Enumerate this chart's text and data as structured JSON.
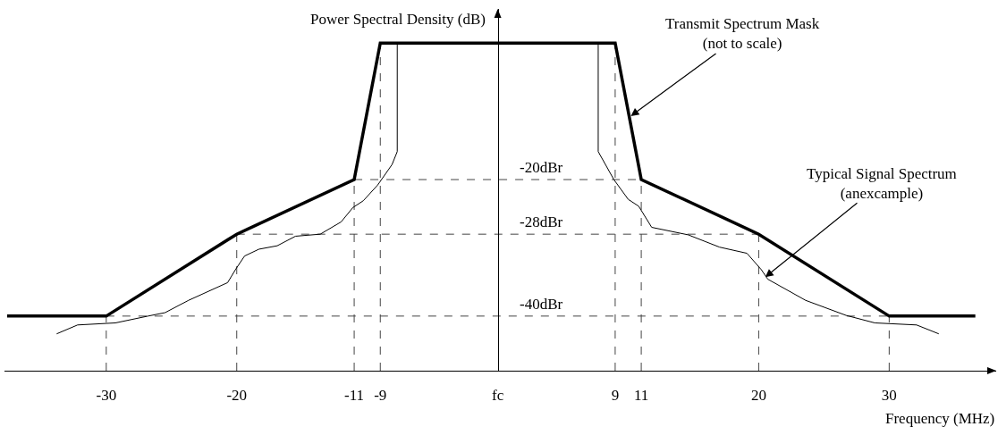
{
  "chart_data": {
    "type": "line",
    "xlabel": "Frequency (MHz)",
    "ylabel": "Power Spectral Density (dB)",
    "xlim": [
      -37.8,
      38.2
    ],
    "ylim": [
      -48,
      5
    ],
    "xticks": [
      -30,
      -20,
      -11,
      -9,
      {
        "value": 0,
        "label": "fc"
      },
      9,
      11,
      20,
      30
    ],
    "tick_labels": "x",
    "series": [
      {
        "color": "#000000",
        "x": [
          -37.6,
          -30,
          -20,
          -11,
          -9,
          9,
          11,
          20,
          30,
          36.6
        ],
        "values": [
          -40,
          -40,
          -28,
          -20,
          0,
          0,
          -20,
          -28,
          -40,
          -40
        ]
      },
      {
        "color": "#000000",
        "x": [
          -33.8,
          -32.2,
          -29.3,
          -26.8,
          -25.5,
          -23.7,
          -20.7,
          -20.1,
          -19.4,
          -18.3,
          -16.9,
          -15.5,
          -13.6,
          -12.0,
          -11.1,
          -10.3,
          -9.2,
          -8.1,
          -7.7,
          -7.7,
          7.7,
          7.7,
          8.9,
          10.0,
          10.8,
          11.8,
          14.6,
          17.0,
          19.1,
          20.2,
          20.7,
          23.6,
          26.7,
          28.9,
          32.1,
          33.8
        ],
        "values": [
          -42.6,
          -41.3,
          -41.0,
          -40.0,
          -39.5,
          -37.7,
          -35.1,
          -33.2,
          -31.2,
          -30.2,
          -29.7,
          -28.3,
          -28,
          -26.2,
          -24.1,
          -23.1,
          -20.8,
          -17.8,
          -15.9,
          0,
          0,
          -15.9,
          -20,
          -22.9,
          -23.9,
          -27.0,
          -28.1,
          -29.9,
          -30.8,
          -33.2,
          -34.6,
          -37.7,
          -39.9,
          -41.0,
          -41.3,
          -42.6
        ]
      }
    ],
    "ref_lines": [
      {
        "axis": "y",
        "value": -20,
        "label": "-20dBr",
        "color": "#444444",
        "line_style": "dashed"
      },
      {
        "axis": "y",
        "value": -28,
        "label": "-28dBr",
        "color": "#444444",
        "line_style": "dashed"
      },
      {
        "axis": "y",
        "value": -40,
        "label": "-40dBr",
        "color": "#444444",
        "line_style": "dashed"
      },
      {
        "axis": "x",
        "value": -30,
        "color": "#444444",
        "line_style": "dashed"
      },
      {
        "axis": "x",
        "value": -20,
        "color": "#444444",
        "line_style": "dashed"
      },
      {
        "axis": "x",
        "value": -11,
        "color": "#444444",
        "line_style": "dashed"
      },
      {
        "axis": "x",
        "value": -9,
        "color": "#444444",
        "line_style": "dashed"
      },
      {
        "axis": "x",
        "value": 9,
        "color": "#444444",
        "line_style": "dashed"
      },
      {
        "axis": "x",
        "value": 11,
        "color": "#444444",
        "line_style": "dashed"
      },
      {
        "axis": "x",
        "value": 20,
        "color": "#444444",
        "line_style": "dashed"
      },
      {
        "axis": "x",
        "value": 30,
        "color": "#444444",
        "line_style": "dashed"
      }
    ],
    "annotations": [
      {
        "text": "Transmit Spectrum Mask\n(not to scale)",
        "x": 10.2,
        "y": -10.7
      },
      {
        "text": "Typical Signal Spectrum\n(anexcample)",
        "x": 20.5,
        "y": -34.3
      }
    ]
  }
}
